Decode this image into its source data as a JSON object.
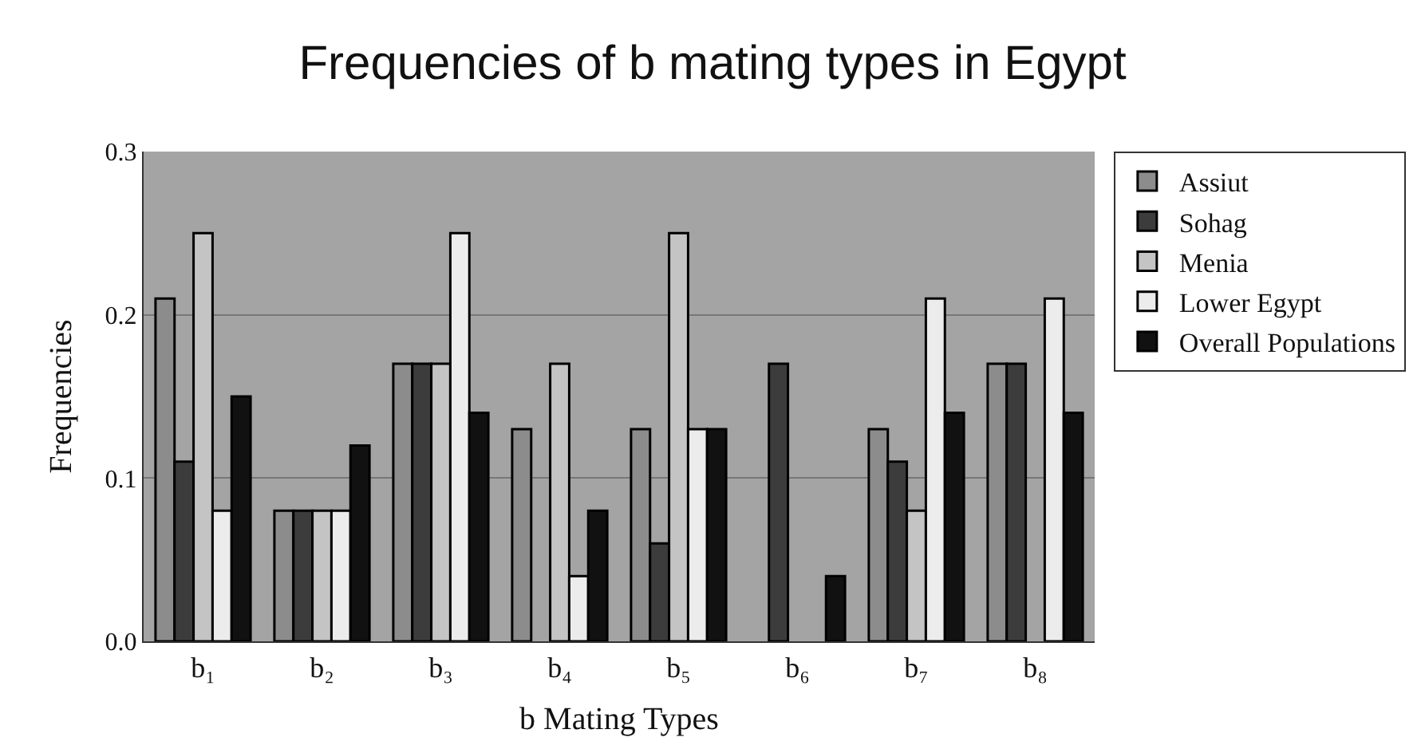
{
  "chart_data": {
    "type": "bar",
    "title": "Frequencies of b mating types in Egypt",
    "xlabel": "b Mating Types",
    "ylabel": "Frequencies",
    "categories": [
      "b₁",
      "b₂",
      "b₃",
      "b₄",
      "b₅",
      "b₆",
      "b₇",
      "b₈"
    ],
    "series": [
      {
        "name": "Assiut",
        "color": "#8c8c8c",
        "values": [
          0.21,
          0.08,
          0.17,
          0.13,
          0.13,
          null,
          0.13,
          0.17
        ]
      },
      {
        "name": "Sohag",
        "color": "#3c3c3c",
        "values": [
          0.11,
          0.08,
          0.17,
          null,
          0.06,
          0.17,
          0.11,
          0.17
        ]
      },
      {
        "name": "Menia",
        "color": "#c4c4c4",
        "values": [
          0.25,
          0.08,
          0.17,
          0.17,
          0.25,
          null,
          0.08,
          null
        ]
      },
      {
        "name": "Lower Egypt",
        "color": "#ececec",
        "values": [
          0.08,
          0.08,
          0.25,
          0.04,
          0.13,
          null,
          0.21,
          0.21
        ]
      },
      {
        "name": "Overall Populations",
        "color": "#111111",
        "values": [
          0.15,
          0.12,
          0.14,
          0.08,
          0.13,
          0.04,
          0.14,
          0.14
        ]
      }
    ],
    "ylim": [
      0,
      0.3
    ],
    "yticks": [
      {
        "value": 0,
        "label": "0.0"
      },
      0.1,
      0.2,
      0.3
    ],
    "grid": "y",
    "legend": "right"
  }
}
